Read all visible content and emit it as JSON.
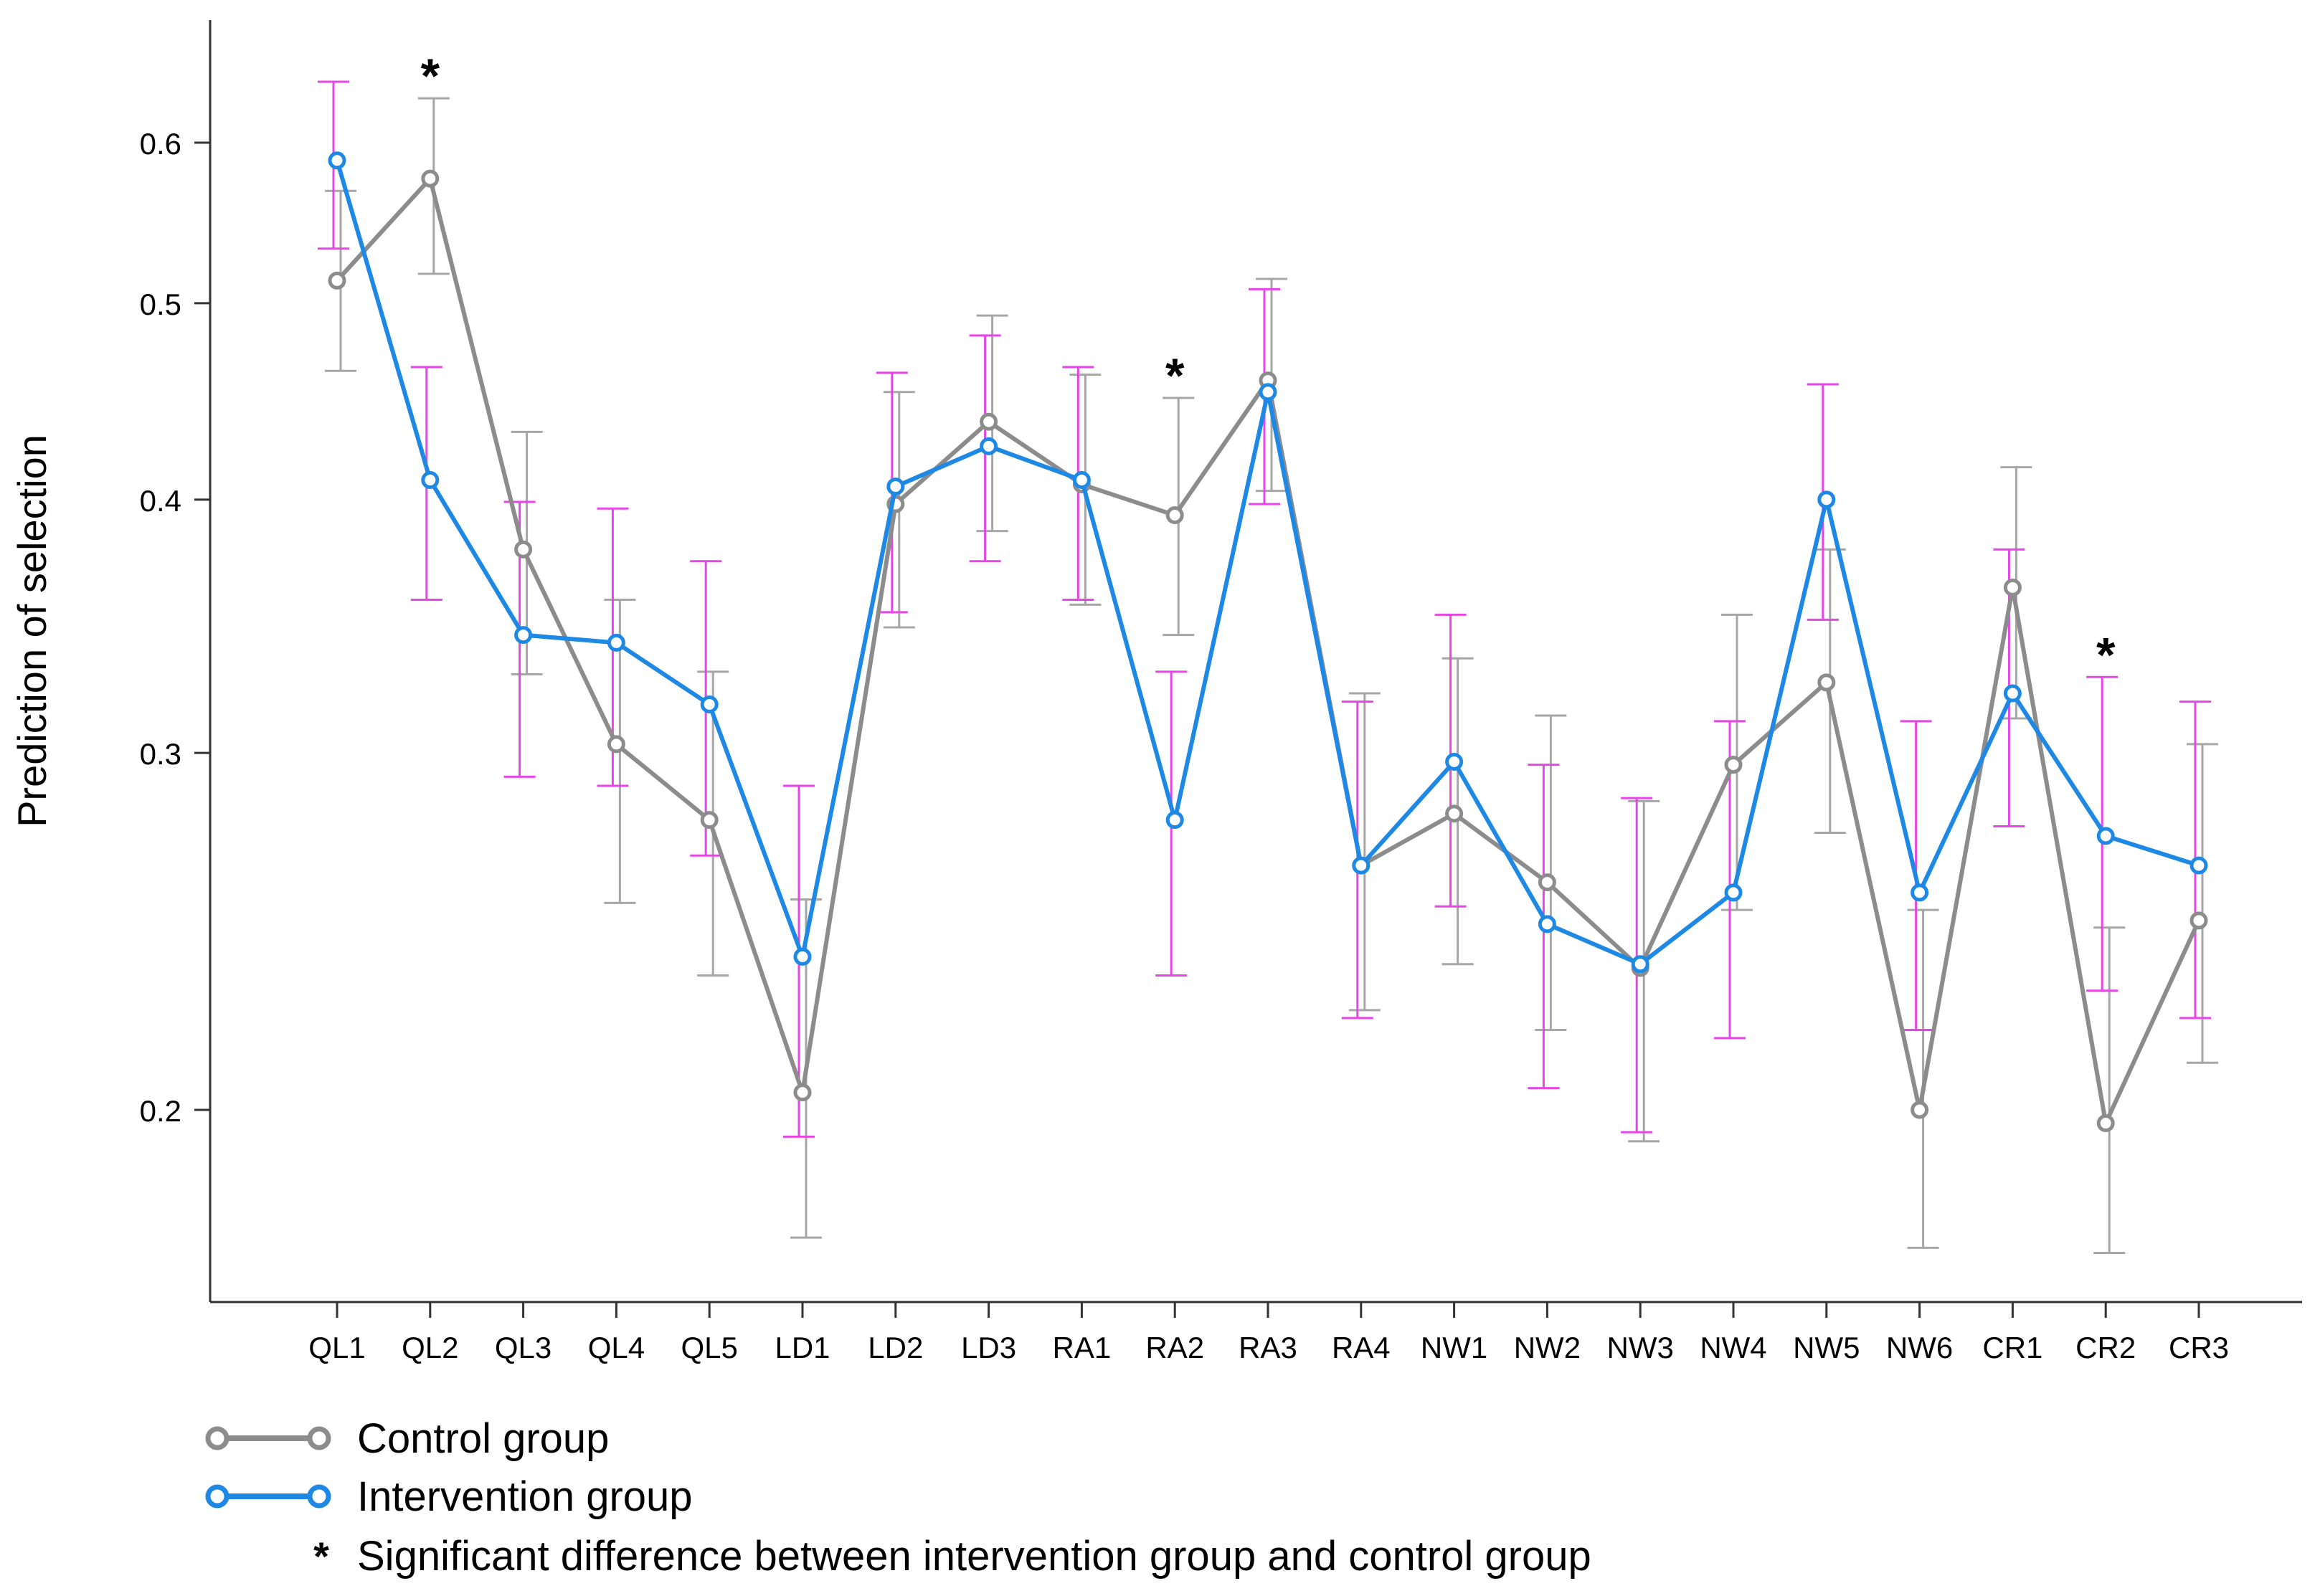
{
  "chart_data": {
    "type": "line",
    "title": "",
    "xlabel": "",
    "ylabel": "Prediction of selection",
    "y_scale": "log",
    "ylim": [
      0.17,
      0.66
    ],
    "y_ticks": [
      0.2,
      0.3,
      0.4,
      0.5,
      0.6
    ],
    "y_tick_labels": [
      "0.2",
      "0.3",
      "0.4",
      "0.5",
      "0.6"
    ],
    "grid": false,
    "legend_position": "bottom-left",
    "categories": [
      "QL1",
      "QL2",
      "QL3",
      "QL4",
      "QL5",
      "LD1",
      "LD2",
      "LD3",
      "RA1",
      "RA2",
      "RA3",
      "RA4",
      "NW1",
      "NW2",
      "NW3",
      "NW4",
      "NW5",
      "NW6",
      "CR1",
      "CR2",
      "CR3"
    ],
    "series": [
      {
        "name": "Control group",
        "color": "#8c8c8c",
        "error_color": "#a6a6a6",
        "values": [
          0.513,
          0.576,
          0.378,
          0.303,
          0.278,
          0.204,
          0.398,
          0.437,
          0.407,
          0.393,
          0.458,
          0.264,
          0.28,
          0.259,
          0.235,
          0.296,
          0.325,
          0.2,
          0.362,
          0.197,
          0.248
        ],
        "lower": [
          0.463,
          0.517,
          0.328,
          0.253,
          0.233,
          0.173,
          0.346,
          0.386,
          0.355,
          0.343,
          0.404,
          0.224,
          0.236,
          0.219,
          0.193,
          0.251,
          0.274,
          0.171,
          0.312,
          0.17,
          0.211
        ],
        "upper": [
          0.568,
          0.631,
          0.432,
          0.357,
          0.329,
          0.254,
          0.452,
          0.493,
          0.461,
          0.449,
          0.514,
          0.321,
          0.334,
          0.313,
          0.284,
          0.351,
          0.378,
          0.251,
          0.415,
          0.246,
          0.303
        ]
      },
      {
        "name": "Intervention group",
        "color": "#1e88e5",
        "error_color": "#e646e6",
        "values": [
          0.588,
          0.409,
          0.343,
          0.34,
          0.317,
          0.238,
          0.406,
          0.425,
          0.409,
          0.278,
          0.452,
          0.264,
          0.297,
          0.247,
          0.236,
          0.256,
          0.4,
          0.256,
          0.321,
          0.273,
          0.264
        ],
        "lower": [
          0.532,
          0.357,
          0.292,
          0.289,
          0.267,
          0.194,
          0.352,
          0.373,
          0.357,
          0.233,
          0.398,
          0.222,
          0.252,
          0.205,
          0.195,
          0.217,
          0.349,
          0.219,
          0.276,
          0.229,
          0.222
        ],
        "upper": [
          0.643,
          0.465,
          0.399,
          0.396,
          0.373,
          0.289,
          0.462,
          0.482,
          0.465,
          0.329,
          0.508,
          0.318,
          0.351,
          0.296,
          0.285,
          0.311,
          0.456,
          0.311,
          0.378,
          0.327,
          0.318
        ]
      }
    ],
    "significance": {
      "symbol": "*",
      "categories": [
        "QL2",
        "RA2",
        "CR2"
      ]
    }
  },
  "legend": {
    "items": [
      {
        "label": "Control group",
        "color": "#8c8c8c"
      },
      {
        "label": "Intervention group",
        "color": "#1e88e5"
      }
    ],
    "note_symbol": "*",
    "note": "Significant difference between intervention group and control group"
  }
}
